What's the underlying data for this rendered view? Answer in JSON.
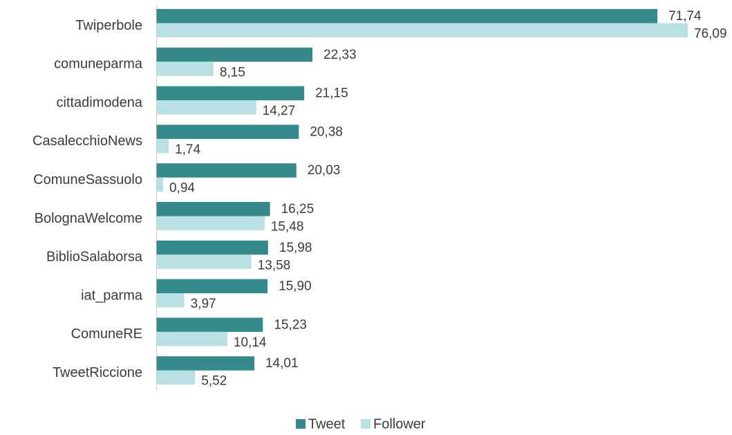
{
  "chart_data": {
    "type": "bar",
    "orientation": "horizontal",
    "categories": [
      "Twiperbole",
      "comuneparma",
      "cittadimodena",
      "CasalecchioNews",
      "ComuneSassuolo",
      "BolognaWelcome",
      "BiblioSalaborsa",
      "iat_parma",
      "ComuneRE",
      "TweetRiccione"
    ],
    "series": [
      {
        "name": "Tweet",
        "color": "#378a8c",
        "values": [
          71.74,
          22.33,
          21.15,
          20.38,
          20.03,
          16.25,
          15.98,
          15.9,
          15.23,
          14.01
        ],
        "labels": [
          "71,74",
          "22,33",
          "21,15",
          "20,38",
          "20,03",
          "16,25",
          "15,98",
          "15,90",
          "15,23",
          "14,01"
        ]
      },
      {
        "name": "Follower",
        "color": "#b9e0e3",
        "values": [
          76.09,
          8.15,
          14.27,
          1.74,
          0.94,
          15.48,
          13.58,
          3.97,
          10.14,
          5.52
        ],
        "labels": [
          "76,09",
          "8,15",
          "14,27",
          "1,74",
          "0,94",
          "15,48",
          "13,58",
          "3,97",
          "10,14",
          "5,52"
        ]
      }
    ],
    "xlim": [
      0,
      80
    ],
    "grid": false,
    "legend": "bottom-center"
  }
}
